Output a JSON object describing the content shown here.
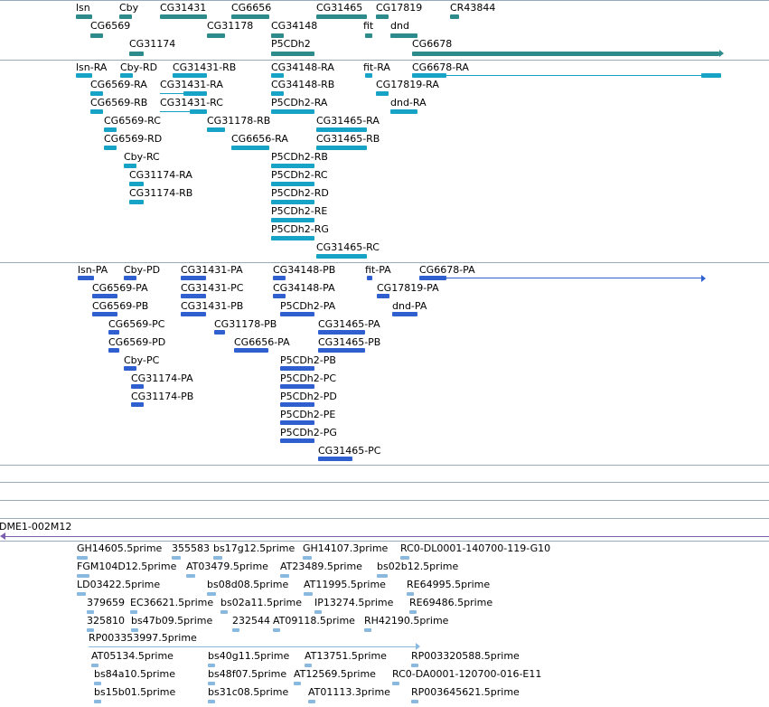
{
  "colors": {
    "gene": "#2d8b8b",
    "tx_rna": "#17a3c5",
    "tx_prot": "#3060d0",
    "est": "#8ab9e0",
    "bac": "#7b5fb0",
    "separator": "#9ab"
  },
  "genes": {
    "row1": [
      "lsn",
      "Cby",
      "CG31431",
      "CG6656",
      "CG31465",
      "CG17819",
      "CR43844"
    ],
    "row2": [
      "CG6569",
      "CG31178",
      "CG34148",
      "fit",
      "dnd"
    ],
    "row3": [
      "CG31174",
      "P5CDh2",
      "CG6678"
    ]
  },
  "rna": {
    "r0": [
      "lsn-RA",
      "Cby-RD",
      "CG31431-RB",
      "CG34148-RA",
      "fit-RA",
      "CG6678-RA"
    ],
    "r1": [
      "CG6569-RA",
      "CG31431-RA",
      "CG34148-RB",
      "CG17819-RA"
    ],
    "r2": [
      "CG6569-RB",
      "CG31431-RC",
      "P5CDh2-RA",
      "dnd-RA"
    ],
    "r3": [
      "CG6569-RC",
      "CG31178-RB",
      "CG31465-RA"
    ],
    "r4": [
      "CG6569-RD",
      "CG6656-RA",
      "CG31465-RB"
    ],
    "r5": [
      "Cby-RC",
      "P5CDh2-RB"
    ],
    "r6": [
      "CG31174-RA",
      "P5CDh2-RC"
    ],
    "r7": [
      "CG31174-RB",
      "P5CDh2-RD"
    ],
    "r8": [
      "P5CDh2-RE"
    ],
    "r9": [
      "P5CDh2-RG"
    ],
    "r10": [
      "CG31465-RC"
    ]
  },
  "prot": {
    "r0": [
      "lsn-PA",
      "Cby-PD",
      "CG31431-PA",
      "CG34148-PB",
      "fit-PA",
      "CG6678-PA"
    ],
    "r1": [
      "CG6569-PA",
      "CG31431-PC",
      "CG34148-PA",
      "CG17819-PA"
    ],
    "r2": [
      "CG6569-PB",
      "CG31431-PB",
      "P5CDh2-PA",
      "dnd-PA"
    ],
    "r3": [
      "CG6569-PC",
      "CG31178-PB",
      "CG31465-PA"
    ],
    "r4": [
      "CG6569-PD",
      "CG6656-PA",
      "CG31465-PB"
    ],
    "r5": [
      "Cby-PC",
      "P5CDh2-PB"
    ],
    "r6": [
      "CG31174-PA",
      "P5CDh2-PC"
    ],
    "r7": [
      "CG31174-PB",
      "P5CDh2-PD"
    ],
    "r8": [
      "P5CDh2-PE"
    ],
    "r9": [
      "P5CDh2-PG"
    ],
    "r10": [
      "CG31465-PC"
    ]
  },
  "bac": {
    "label": "DME1-002M12"
  },
  "est": {
    "e0": [
      "GH14605.5prime",
      "355583",
      "bs17g12.5prime",
      "GH14107.3prime",
      "RC0-DL0001-140700-119-G10"
    ],
    "e1": [
      "FGM104D12.5prime",
      "AT03479.5prime",
      "AT23489.5prime",
      "bs02b12.5prime"
    ],
    "e2": [
      "LD03422.5prime",
      "bs08d08.5prime",
      "AT11995.5prime",
      "RE64995.5prime"
    ],
    "e3": [
      "379659",
      "EC36621.5prime",
      "bs02a11.5prime",
      "IP13274.5prime",
      "RE69486.5prime"
    ],
    "e4": [
      "325810",
      "bs47b09.5prime",
      "232544",
      "AT09118.5prime",
      "RH42190.5prime"
    ],
    "e5": [
      "RP003353997.5prime"
    ],
    "e6": [
      "AT05134.5prime",
      "bs40g11.5prime",
      "AT13751.5prime",
      "RP003320588.5prime"
    ],
    "e7": [
      "bs84a10.5prime",
      "bs48f07.5prime",
      "AT12569.5prime",
      "RC0-DA0001-120700-016-E11"
    ],
    "e8": [
      "bs15b01.5prime",
      "bs31c08.5prime",
      "AT01113.3prime",
      "RP003645621.5prime"
    ]
  }
}
